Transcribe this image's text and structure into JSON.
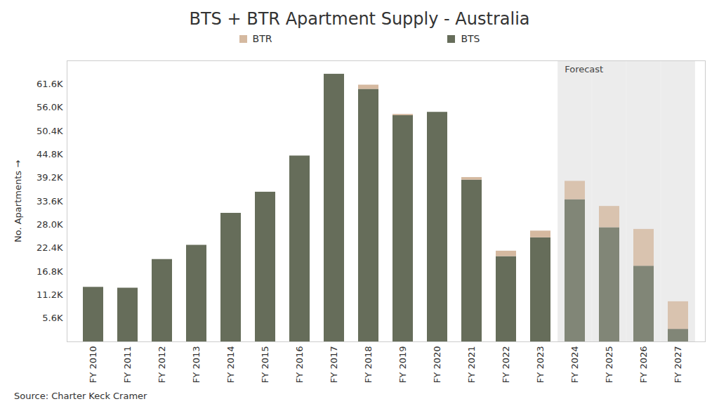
{
  "chart_data": {
    "type": "bar",
    "title": "BTS + BTR Apartment Supply - Australia",
    "y_label": "No. Apartments",
    "caption": "Source: Charter Keck Cramer",
    "stacked": true,
    "grid": false,
    "legend": "top",
    "categories": [
      "FY 2010",
      "FY 2011",
      "FY 2012",
      "FY 2013",
      "FY 2014",
      "FY 2015",
      "FY 2016",
      "FY 2017",
      "FY 2018",
      "FY 2019",
      "FY 2020",
      "FY 2021",
      "FY 2022",
      "FY 2023",
      "FY 2024",
      "FY 2025",
      "FY 2026",
      "FY 2027"
    ],
    "series": [
      {
        "name": "BTR",
        "color": "#d5b9a0",
        "values": [
          0,
          0,
          0,
          0,
          0,
          0,
          0,
          0,
          1000,
          300,
          0,
          600,
          1300,
          1600,
          4400,
          5100,
          8800,
          6600
        ]
      },
      {
        "name": "BTS",
        "color": "#666d5a",
        "values": [
          13050,
          12850,
          19700,
          23100,
          30750,
          35800,
          44450,
          64000,
          60400,
          54100,
          54900,
          38700,
          20400,
          24900,
          34000,
          27300,
          18100,
          3000
        ]
      }
    ],
    "annotations": [
      {
        "label": "Forecast",
        "from": "FY 2024",
        "to": "FY 2027"
      }
    ],
    "ylim": [
      0,
      67200
    ],
    "yticks": [
      {
        "value": 5600,
        "label": "5.6K"
      },
      {
        "value": 11200,
        "label": "11.2K"
      },
      {
        "value": 16800,
        "label": "16.8K"
      },
      {
        "value": 22400,
        "label": "22.4K"
      },
      {
        "value": 28000,
        "label": "28.0K"
      },
      {
        "value": 33600,
        "label": "33.6K"
      },
      {
        "value": 39200,
        "label": "39.2K"
      },
      {
        "value": 44800,
        "label": "44.8K"
      },
      {
        "value": 50400,
        "label": "50.4K"
      },
      {
        "value": 56000,
        "label": "56.0K"
      },
      {
        "value": 61600,
        "label": "61.6K"
      }
    ]
  }
}
